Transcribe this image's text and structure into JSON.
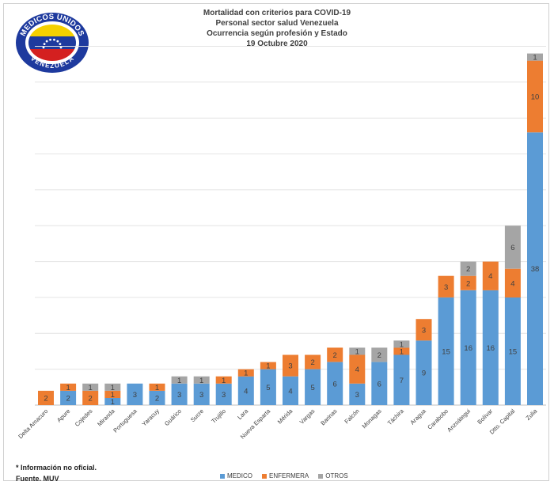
{
  "title_lines": [
    "Mortalidad con criterios para COVID-19",
    "Personal sector salud Venezuela",
    "Ocurrencia según profesión y Estado",
    "19 Octubre 2020"
  ],
  "logo": {
    "text_top": "MEDICOS UNIDOS",
    "text_bottom": "VENEZUELA",
    "colors": {
      "ring": "#1e3a9e",
      "yellow": "#f5d000",
      "blue": "#1e3a9e",
      "red": "#d42020",
      "star": "#ffffff"
    }
  },
  "notes": {
    "info": "* Información no oficial.",
    "source": "Fuente. MUV"
  },
  "legend": [
    {
      "label": "MEDICO",
      "color": "#5b9bd5"
    },
    {
      "label": "ENFERMERA",
      "color": "#ed7d31"
    },
    {
      "label": "OTROS",
      "color": "#a5a5a5"
    }
  ],
  "chart_data": {
    "type": "bar",
    "stacked": true,
    "title": "Mortalidad con criterios para COVID-19",
    "categories": [
      "Delta Amacuro",
      "Apure",
      "Cojedes",
      "Miranda",
      "Portuguesa",
      "Yaracuy",
      "Guárico",
      "Sucre",
      "Trujillo",
      "Lara",
      "Nueva Esparta",
      "Mérida",
      "Vargas",
      "Barinas",
      "Falcón",
      "Monagas",
      "Táchira",
      "Aragua",
      "Carabobo",
      "Anzoátegui",
      "Bolívar",
      "Dtto. Capital",
      "Zulia"
    ],
    "series": [
      {
        "name": "MEDICO",
        "color": "#5b9bd5",
        "values": [
          0,
          2,
          0,
          1,
          3,
          2,
          3,
          3,
          3,
          4,
          5,
          4,
          5,
          6,
          3,
          6,
          7,
          9,
          15,
          16,
          16,
          15,
          38
        ]
      },
      {
        "name": "ENFERMERA",
        "color": "#ed7d31",
        "values": [
          2,
          1,
          2,
          1,
          0,
          1,
          0,
          0,
          1,
          1,
          1,
          3,
          2,
          2,
          4,
          0,
          1,
          3,
          3,
          2,
          4,
          4,
          10
        ]
      },
      {
        "name": "OTROS",
        "color": "#a5a5a5",
        "values": [
          0,
          0,
          1,
          1,
          0,
          0,
          1,
          1,
          0,
          0,
          0,
          0,
          0,
          0,
          1,
          2,
          1,
          0,
          0,
          2,
          0,
          6,
          1
        ]
      }
    ],
    "ylim": [
      0,
      50
    ],
    "grid": true,
    "legend_position": "bottom"
  }
}
